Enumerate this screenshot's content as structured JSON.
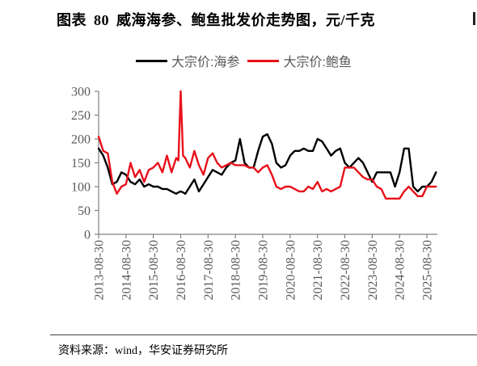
{
  "chart_data": {
    "type": "line",
    "title": "图表 80 威海海参、鲍鱼批发价走势图，元/千克",
    "legend_position": "top-center",
    "grid": false,
    "ylim": [
      0,
      300
    ],
    "xlim": [
      "2013-08-30",
      "2026-01-17"
    ],
    "y_ticks": [
      0,
      50,
      100,
      150,
      200,
      250,
      300
    ],
    "x_ticks": [
      "2013-08-30",
      "2014-08-30",
      "2015-08-30",
      "2016-08-30",
      "2017-08-30",
      "2018-08-30",
      "2019-08-30",
      "2020-08-30",
      "2021-08-30",
      "2022-08-30",
      "2023-08-30",
      "2024-08-30",
      "2025-08-30"
    ],
    "x": [
      "2013-08-30",
      "2013-10-30",
      "2013-12-30",
      "2014-02-28",
      "2014-04-30",
      "2014-06-30",
      "2014-08-30",
      "2014-10-30",
      "2014-12-30",
      "2015-02-28",
      "2015-04-30",
      "2015-06-30",
      "2015-08-30",
      "2015-10-30",
      "2015-12-30",
      "2016-02-28",
      "2016-04-30",
      "2016-06-30",
      "2016-07-30",
      "2016-08-30",
      "2016-09-30",
      "2016-10-30",
      "2016-12-30",
      "2017-02-28",
      "2017-04-30",
      "2017-06-30",
      "2017-08-30",
      "2017-10-30",
      "2017-12-30",
      "2018-02-28",
      "2018-04-30",
      "2018-06-30",
      "2018-08-30",
      "2018-10-30",
      "2018-12-30",
      "2019-02-28",
      "2019-04-30",
      "2019-06-30",
      "2019-08-30",
      "2019-10-30",
      "2019-12-30",
      "2020-02-28",
      "2020-04-30",
      "2020-06-30",
      "2020-08-30",
      "2020-10-30",
      "2020-12-30",
      "2021-02-28",
      "2021-04-30",
      "2021-06-30",
      "2021-08-30",
      "2021-10-30",
      "2021-12-30",
      "2022-02-28",
      "2022-04-30",
      "2022-06-30",
      "2022-08-30",
      "2022-10-30",
      "2022-12-30",
      "2023-02-28",
      "2023-04-30",
      "2023-06-30",
      "2023-08-30",
      "2023-10-30",
      "2023-12-30",
      "2024-02-28",
      "2024-04-30",
      "2024-06-30",
      "2024-08-30",
      "2024-10-30",
      "2024-12-30",
      "2025-02-28",
      "2025-04-30",
      "2025-06-30",
      "2025-08-30",
      "2025-10-30",
      "2025-12-30"
    ],
    "series": [
      {
        "name": "大宗价:海参",
        "color": "#000000",
        "values": [
          180,
          165,
          140,
          105,
          110,
          130,
          125,
          110,
          105,
          115,
          100,
          105,
          100,
          100,
          95,
          95,
          90,
          85,
          88,
          90,
          88,
          85,
          100,
          115,
          90,
          105,
          120,
          135,
          130,
          125,
          140,
          150,
          155,
          200,
          150,
          140,
          140,
          175,
          205,
          210,
          190,
          150,
          140,
          145,
          165,
          175,
          175,
          180,
          175,
          175,
          200,
          195,
          180,
          165,
          175,
          180,
          150,
          140,
          150,
          160,
          150,
          130,
          110,
          130,
          130,
          130,
          130,
          100,
          130,
          180,
          180,
          100,
          90,
          100,
          100,
          110,
          130
        ]
      },
      {
        "name": "大宗价:鲍鱼",
        "color": "#e8101a",
        "values": [
          205,
          175,
          170,
          110,
          85,
          100,
          105,
          150,
          120,
          135,
          110,
          135,
          140,
          150,
          130,
          165,
          130,
          160,
          155,
          300,
          165,
          160,
          140,
          175,
          145,
          125,
          160,
          170,
          150,
          140,
          145,
          150,
          145,
          145,
          145,
          140,
          140,
          130,
          140,
          145,
          125,
          100,
          95,
          100,
          100,
          95,
          90,
          90,
          100,
          95,
          110,
          90,
          95,
          90,
          95,
          100,
          140,
          140,
          140,
          130,
          120,
          115,
          115,
          100,
          95,
          75,
          75,
          75,
          75,
          90,
          100,
          90,
          80,
          80,
          100,
          100,
          100
        ]
      }
    ]
  },
  "footer": {
    "source": "资料来源：wind，华安证券研究所"
  }
}
